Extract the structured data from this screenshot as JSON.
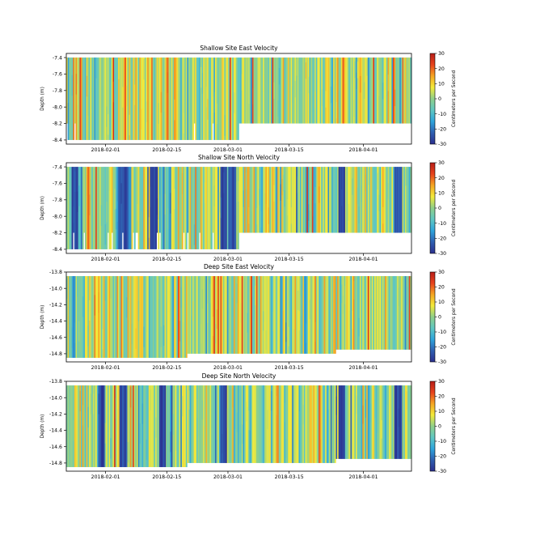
{
  "figure": {
    "colorbar": {
      "label": "Centimeters per Second",
      "ticks": [
        30,
        20,
        10,
        0,
        -10,
        -20,
        -30
      ],
      "range": [
        -30,
        30
      ],
      "colormap": [
        "#2b2f8e",
        "#2f5fb1",
        "#2fa5dc",
        "#5fc7c2",
        "#8fd08a",
        "#f3ea3a",
        "#f5a623",
        "#e8431c",
        "#b71d18"
      ]
    },
    "x_axis": {
      "tick_labels": [
        "2018-02-01",
        "2018-02-15",
        "2018-03-01",
        "2018-03-15",
        "2018-04-01"
      ],
      "tick_dates": [
        "2018-02-01",
        "2018-02-15",
        "2018-03-01",
        "2018-03-15",
        "2018-04-01"
      ],
      "start": "2018-01-23",
      "end": "2018-04-12"
    }
  },
  "chart_data": [
    {
      "type": "heatmap",
      "title": "Shallow Site East Velocity",
      "ylabel": "Depth (m)",
      "yticks": [
        "-7.4",
        "-7.6",
        "-7.8",
        "-8.0",
        "-8.2",
        "-8.4"
      ],
      "ylim": [
        -8.45,
        -7.35
      ],
      "depth_range": [
        -8.4,
        -7.4
      ],
      "component": "east",
      "seed": 11,
      "events": []
    },
    {
      "type": "heatmap",
      "title": "Shallow Site North Velocity",
      "ylabel": "Depth (m)",
      "yticks": [
        "-7.4",
        "-7.6",
        "-7.8",
        "-8.0",
        "-8.2",
        "-8.4"
      ],
      "ylim": [
        -8.45,
        -7.35
      ],
      "depth_range": [
        -8.4,
        -7.4
      ],
      "component": "north",
      "seed": 23,
      "events": [
        "2018-01-25",
        "2018-02-05",
        "2018-02-12",
        "2018-02-28",
        "2018-03-02",
        "2018-03-27",
        "2018-04-09"
      ]
    },
    {
      "type": "heatmap",
      "title": "Deep Site East Velocity",
      "ylabel": "Depth (m)",
      "yticks": [
        "-13.8",
        "-14.0",
        "-14.2",
        "-14.4",
        "-14.6",
        "-14.8"
      ],
      "ylim": [
        -14.9,
        -13.8
      ],
      "depth_range": [
        -14.85,
        -13.85
      ],
      "component": "east",
      "seed": 37,
      "events": []
    },
    {
      "type": "heatmap",
      "title": "Deep Site North Velocity",
      "ylabel": "Depth (m)",
      "yticks": [
        "-13.8",
        "-14.0",
        "-14.2",
        "-14.4",
        "-14.6",
        "-14.8"
      ],
      "ylim": [
        -14.9,
        -13.8
      ],
      "depth_range": [
        -14.85,
        -13.85
      ],
      "component": "north",
      "seed": 51,
      "events": [
        "2018-01-31",
        "2018-02-05",
        "2018-02-14",
        "2018-02-28",
        "2018-03-27",
        "2018-04-09"
      ]
    }
  ]
}
